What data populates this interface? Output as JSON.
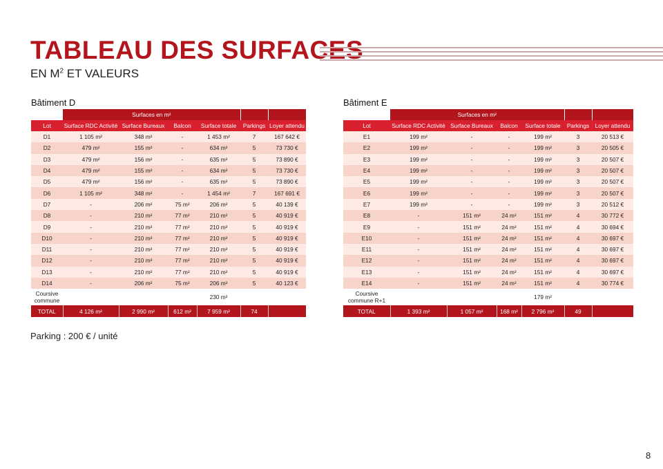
{
  "header": {
    "title": "TABLEAU DES SURFACES",
    "subtitle_pre": "EN M",
    "subtitle_sup": "2",
    "subtitle_post": " ET VALEURS"
  },
  "colors": {
    "accent": "#b3151d",
    "header_row": "#d9202e",
    "row_light": "#fdeae4",
    "row_dark": "#f8d3c9"
  },
  "tables": [
    {
      "building": "Bâtiment D",
      "group_header": "Surfaces en m²",
      "columns": [
        "Lot",
        "Surface RDC Activité",
        "Surface Bureaux",
        "Balcon",
        "Surface totale",
        "Parkings",
        "Loyer attendu"
      ],
      "rows": [
        [
          "D1",
          "1 105 m²",
          "348 m²",
          "-",
          "1 453 m²",
          "7",
          "167 642 €"
        ],
        [
          "D2",
          "479 m²",
          "155 m²",
          "-",
          "634 m²",
          "5",
          "73 730 €"
        ],
        [
          "D3",
          "479 m²",
          "156 m²",
          "-",
          "635 m²",
          "5",
          "73 890 €"
        ],
        [
          "D4",
          "479 m²",
          "155 m²",
          "-",
          "634 m²",
          "5",
          "73 730 €"
        ],
        [
          "D5",
          "479 m²",
          "156 m²",
          "-",
          "635 m²",
          "5",
          "73 890 €"
        ],
        [
          "D6",
          "1 105 m²",
          "348 m²",
          "-",
          "1 454 m²",
          "7",
          "167 691 €"
        ],
        [
          "D7",
          "-",
          "206 m²",
          "75 m²",
          "206 m²",
          "5",
          "40 139 €"
        ],
        [
          "D8",
          "-",
          "210 m²",
          "77 m²",
          "210 m²",
          "5",
          "40 919 €"
        ],
        [
          "D9",
          "-",
          "210 m²",
          "77 m²",
          "210 m²",
          "5",
          "40 919 €"
        ],
        [
          "D10",
          "-",
          "210 m²",
          "77 m²",
          "210 m²",
          "5",
          "40 919 €"
        ],
        [
          "D11",
          "-",
          "210 m²",
          "77 m²",
          "210 m²",
          "5",
          "40 919 €"
        ],
        [
          "D12",
          "-",
          "210 m²",
          "77 m²",
          "210 m²",
          "5",
          "40 919 €"
        ],
        [
          "D13",
          "-",
          "210 m²",
          "77 m²",
          "210 m²",
          "5",
          "40 919 €"
        ],
        [
          "D14",
          "-",
          "206 m²",
          "75 m²",
          "206 m²",
          "5",
          "40 123 €"
        ]
      ],
      "coursive": {
        "label_1": "Coursive",
        "label_2": "commune",
        "value": "230 m²"
      },
      "total": [
        "TOTAL",
        "4 126 m²",
        "2 990 m²",
        "612 m²",
        "7 959 m²",
        "74",
        ""
      ]
    },
    {
      "building": "Bâtiment E",
      "group_header": "Surfaces en m²",
      "columns": [
        "Lot",
        "Surface RDC Activité",
        "Surface Bureaux",
        "Balcon",
        "Surface totale",
        "Parkings",
        "Loyer attendu"
      ],
      "rows": [
        [
          "E1",
          "199 m²",
          "-",
          "-",
          "199 m²",
          "3",
          "20 513 €"
        ],
        [
          "E2",
          "199 m²",
          "-",
          "-",
          "199 m²",
          "3",
          "20 505 €"
        ],
        [
          "E3",
          "199 m²",
          "-",
          "-",
          "199 m²",
          "3",
          "20 507 €"
        ],
        [
          "E4",
          "199 m²",
          "-",
          "-",
          "199 m²",
          "3",
          "20 507 €"
        ],
        [
          "E5",
          "199 m²",
          "-",
          "-",
          "199 m²",
          "3",
          "20 507 €"
        ],
        [
          "E6",
          "199 m²",
          "-",
          "-",
          "199 m²",
          "3",
          "20 507 €"
        ],
        [
          "E7",
          "199 m²",
          "-",
          "-",
          "199 m²",
          "3",
          "20 512 €"
        ],
        [
          "E8",
          "-",
          "151 m²",
          "24 m²",
          "151 m²",
          "4",
          "30 772 €"
        ],
        [
          "E9",
          "-",
          "151 m²",
          "24 m²",
          "151 m²",
          "4",
          "30 694 €"
        ],
        [
          "E10",
          "-",
          "151 m²",
          "24 m²",
          "151 m²",
          "4",
          "30 697 €"
        ],
        [
          "E11",
          "-",
          "151 m²",
          "24 m²",
          "151 m²",
          "4",
          "30 697 €"
        ],
        [
          "E12",
          "-",
          "151 m²",
          "24 m²",
          "151 m²",
          "4",
          "30 697 €"
        ],
        [
          "E13",
          "-",
          "151 m²",
          "24 m²",
          "151 m²",
          "4",
          "30 697 €"
        ],
        [
          "E14",
          "-",
          "151 m²",
          "24 m²",
          "151 m²",
          "4",
          "30 774 €"
        ]
      ],
      "coursive": {
        "label_1": "Coursive",
        "label_2": "commune R+1",
        "value": "179 m²"
      },
      "total": [
        "TOTAL",
        "1 393 m²",
        "1 057 m²",
        "168 m²",
        "2 796 m²",
        "49",
        ""
      ]
    }
  ],
  "footer": {
    "parking_note": "Parking : 200 € / unité",
    "page_number": "8"
  }
}
